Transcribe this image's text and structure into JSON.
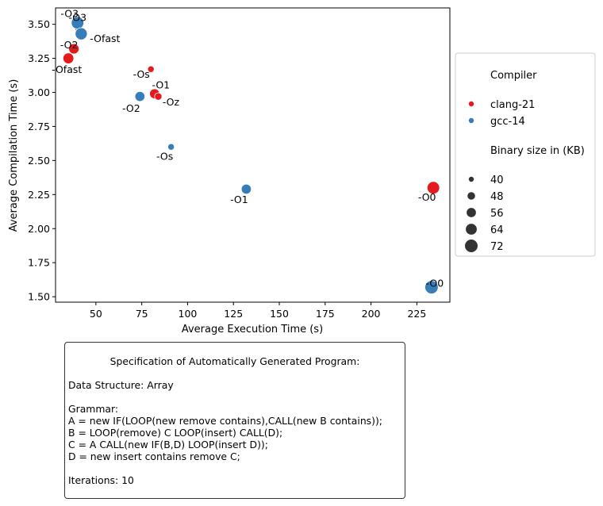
{
  "chart_data": {
    "type": "scatter",
    "xlabel": "Average Execution Time (s)",
    "ylabel": "Average Compilation Time (s)",
    "xlim": [
      28,
      243
    ],
    "ylim": [
      1.46,
      3.62
    ],
    "xticks": [
      50,
      75,
      100,
      125,
      150,
      175,
      200,
      225
    ],
    "yticks": [
      1.5,
      1.75,
      2.0,
      2.25,
      2.5,
      2.75,
      3.0,
      3.25,
      3.5
    ],
    "xtick_labels": [
      "50",
      "75",
      "100",
      "125",
      "150",
      "175",
      "200",
      "225"
    ],
    "ytick_labels": [
      "1.50",
      "1.75",
      "2.00",
      "2.25",
      "2.50",
      "2.75",
      "3.00",
      "3.25",
      "3.50"
    ],
    "series": [
      {
        "name": "clang-21",
        "color": "#e41a1c",
        "points": [
          {
            "label": "-O3",
            "x": 40,
            "y": 3.47,
            "size": 36
          },
          {
            "label": "-O2",
            "x": 38,
            "y": 3.32,
            "size": 58
          },
          {
            "label": "-Ofast",
            "x": 35,
            "y": 3.25,
            "size": 60
          },
          {
            "label": "-Os",
            "x": 80,
            "y": 3.17,
            "size": 40
          },
          {
            "label": "-O1",
            "x": 82,
            "y": 2.99,
            "size": 56
          },
          {
            "label": "-Oz",
            "x": 84,
            "y": 2.97,
            "size": 44
          },
          {
            "label": "-O0",
            "x": 234,
            "y": 2.3,
            "size": 68
          }
        ]
      },
      {
        "name": "gcc-14",
        "color": "#377eb8",
        "points": [
          {
            "label": "-O3",
            "x": 40,
            "y": 3.51,
            "size": 68
          },
          {
            "label": "-Ofast",
            "x": 42,
            "y": 3.43,
            "size": 66
          },
          {
            "label": "-O2",
            "x": 74,
            "y": 2.97,
            "size": 56
          },
          {
            "label": "-Os",
            "x": 91,
            "y": 2.6,
            "size": 40
          },
          {
            "label": "-O1",
            "x": 132,
            "y": 2.29,
            "size": 56
          },
          {
            "label": "-O0",
            "x": 233,
            "y": 1.57,
            "size": 72
          }
        ]
      }
    ],
    "legend": {
      "position": "right",
      "hue_title": "Compiler",
      "hue_entries": [
        {
          "name": "clang-21",
          "color": "#e41a1c"
        },
        {
          "name": "gcc-14",
          "color": "#377eb8"
        }
      ],
      "size_title": "Binary size in (KB)",
      "size_entries": [
        40,
        48,
        56,
        64,
        72
      ]
    }
  },
  "spec": {
    "title": "Specification of Automatically Generated Program:",
    "data_structure": "Data Structure: Array",
    "grammar_title": "Grammar:",
    "rule_a": "A = new IF(LOOP(new remove contains),CALL(new B contains));",
    "rule_b": "B = LOOP(remove) C LOOP(insert) CALL(D);",
    "rule_c": "C = A CALL(new IF(B,D) LOOP(insert D));",
    "rule_d": "D = new insert contains remove C;",
    "iterations": "Iterations: 10"
  }
}
